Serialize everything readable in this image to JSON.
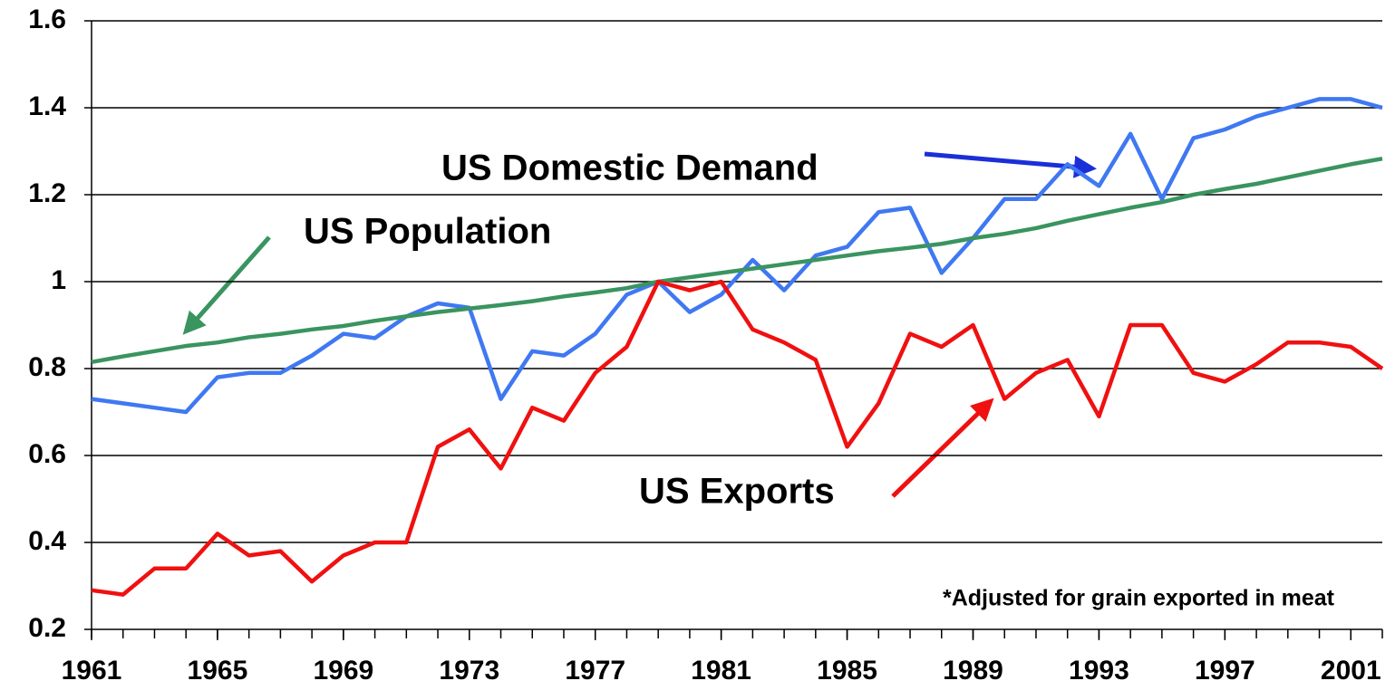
{
  "chart_data": {
    "type": "line",
    "x": [
      1961,
      1962,
      1963,
      1964,
      1965,
      1966,
      1967,
      1968,
      1969,
      1970,
      1971,
      1972,
      1973,
      1974,
      1975,
      1976,
      1977,
      1978,
      1979,
      1980,
      1981,
      1982,
      1983,
      1984,
      1985,
      1986,
      1987,
      1988,
      1989,
      1990,
      1991,
      1992,
      1993,
      1994,
      1995,
      1996,
      1997,
      1998,
      1999,
      2000,
      2001,
      2002
    ],
    "xlim": [
      1961,
      2002
    ],
    "xticks": [
      1961,
      1965,
      1969,
      1973,
      1977,
      1981,
      1985,
      1989,
      1993,
      1997,
      2001
    ],
    "ylim": [
      0.2,
      1.6
    ],
    "yticks": [
      0.2,
      0.4,
      0.6,
      0.8,
      1,
      1.2,
      1.4,
      1.6
    ],
    "grid": true,
    "series": [
      {
        "name": "US Domestic Demand",
        "color": "#3f78f2",
        "values": [
          0.73,
          0.72,
          0.71,
          0.7,
          0.78,
          0.79,
          0.79,
          0.83,
          0.88,
          0.87,
          0.92,
          0.95,
          0.94,
          0.73,
          0.84,
          0.83,
          0.88,
          0.97,
          1.0,
          0.93,
          0.97,
          1.05,
          0.98,
          1.06,
          1.08,
          1.16,
          1.17,
          1.02,
          1.1,
          1.19,
          1.19,
          1.27,
          1.22,
          1.34,
          1.19,
          1.33,
          1.35,
          1.38,
          1.4,
          1.42,
          1.42,
          1.4
        ]
      },
      {
        "name": "US Population",
        "color": "#3a9460",
        "values": [
          0.815,
          0.828,
          0.84,
          0.852,
          0.86,
          0.872,
          0.88,
          0.89,
          0.898,
          0.91,
          0.92,
          0.93,
          0.938,
          0.946,
          0.955,
          0.966,
          0.975,
          0.985,
          1.0,
          1.01,
          1.02,
          1.03,
          1.04,
          1.05,
          1.06,
          1.07,
          1.078,
          1.087,
          1.1,
          1.11,
          1.123,
          1.14,
          1.155,
          1.17,
          1.183,
          1.2,
          1.213,
          1.225,
          1.24,
          1.255,
          1.27,
          1.283
        ]
      },
      {
        "name": "US Exports",
        "color": "#f01010",
        "values": [
          0.29,
          0.28,
          0.34,
          0.34,
          0.42,
          0.37,
          0.38,
          0.31,
          0.37,
          0.4,
          0.4,
          0.62,
          0.66,
          0.57,
          0.71,
          0.68,
          0.79,
          0.85,
          1.0,
          0.98,
          1.0,
          0.89,
          0.86,
          0.82,
          0.62,
          0.72,
          0.88,
          0.85,
          0.9,
          0.73,
          0.79,
          0.82,
          0.69,
          0.9,
          0.9,
          0.79,
          0.77,
          0.81,
          0.86,
          0.86,
          0.85,
          0.8
        ]
      }
    ],
    "note": "*Adjusted for grain exported in meat"
  }
}
